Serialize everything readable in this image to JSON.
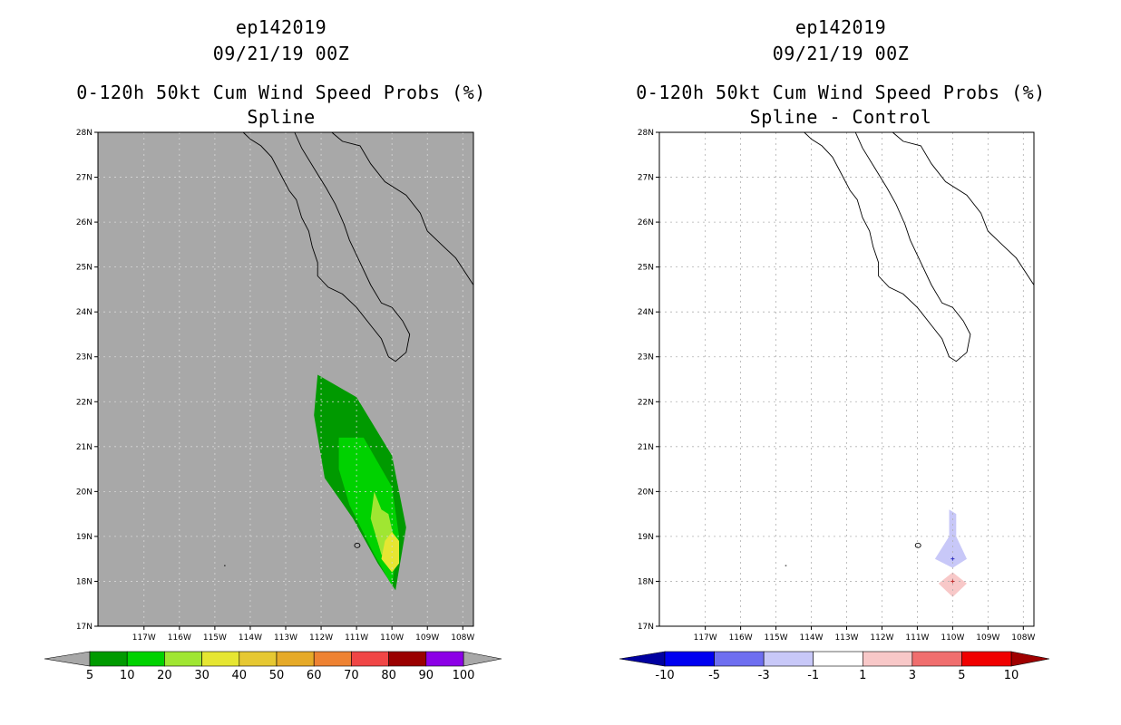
{
  "left_panel": {
    "storm_id": "ep142019",
    "datetime": "09/21/19 00Z",
    "product": "0-120h 50kt Cum Wind Speed Probs (%)",
    "subtitle": "Spline"
  },
  "right_panel": {
    "storm_id": "ep142019",
    "datetime": "09/21/19 00Z",
    "product": "0-120h 50kt Cum Wind Speed Probs (%)",
    "subtitle": "Spline - Control"
  },
  "chart_data": [
    {
      "type": "heatmap",
      "title": "0-120h 50kt Cum Wind Speed Probs (%)",
      "subtitle": "Spline",
      "x_ticks": [
        "117W",
        "116W",
        "115W",
        "114W",
        "113W",
        "112W",
        "111W",
        "110W",
        "109W",
        "108W"
      ],
      "y_ticks": [
        "28N",
        "27N",
        "26N",
        "25N",
        "24N",
        "23N",
        "22N",
        "21N",
        "20N",
        "19N",
        "18N",
        "17N"
      ],
      "xlim": [
        -118.3,
        -107.7
      ],
      "ylim": [
        17,
        28
      ],
      "background_color": "#a8a8a8",
      "grid": true,
      "colorbar": {
        "labels": [
          "5",
          "10",
          "20",
          "30",
          "40",
          "50",
          "60",
          "70",
          "80",
          "90",
          "100"
        ],
        "colors": [
          "#009a00",
          "#00d200",
          "#a0e632",
          "#e6e632",
          "#e6c832",
          "#e6aa28",
          "#ee8232",
          "#f04646",
          "#9a0000",
          "#8c00e6"
        ]
      },
      "contours": [
        {
          "level": "5-10",
          "color": "#009a00",
          "lon": [
            -112.1,
            -111.0,
            -110.0,
            -109.6,
            -109.9,
            -110.4,
            -111.1,
            -111.9,
            -112.2
          ],
          "lat": [
            22.6,
            22.1,
            20.8,
            19.2,
            17.8,
            18.4,
            19.4,
            20.3,
            21.7
          ]
        },
        {
          "level": "10-20",
          "color": "#00d200",
          "lon": [
            -111.5,
            -110.8,
            -110.0,
            -109.8,
            -110.0,
            -110.5,
            -111.2,
            -111.5
          ],
          "lat": [
            21.2,
            21.2,
            20.1,
            19.0,
            17.9,
            18.6,
            19.7,
            20.5
          ]
        },
        {
          "level": "20-30",
          "color": "#a0e632",
          "lon": [
            -110.5,
            -110.3,
            -110.1,
            -109.9,
            -110.0,
            -110.3,
            -110.6
          ],
          "lat": [
            20.0,
            19.6,
            19.5,
            18.8,
            18.3,
            18.6,
            19.4
          ]
        },
        {
          "level": "30-40",
          "color": "#e6e632",
          "lon": [
            -110.0,
            -109.8,
            -109.8,
            -110.0,
            -110.3,
            -110.2
          ],
          "lat": [
            19.1,
            18.9,
            18.4,
            18.2,
            18.5,
            18.9
          ]
        }
      ]
    },
    {
      "type": "heatmap",
      "title": "0-120h 50kt Cum Wind Speed Probs (%)",
      "subtitle": "Spline - Control",
      "x_ticks": [
        "117W",
        "116W",
        "115W",
        "114W",
        "113W",
        "112W",
        "111W",
        "110W",
        "109W",
        "108W"
      ],
      "y_ticks": [
        "28N",
        "27N",
        "26N",
        "25N",
        "24N",
        "23N",
        "22N",
        "21N",
        "20N",
        "19N",
        "18N",
        "17N"
      ],
      "xlim": [
        -118.3,
        -107.7
      ],
      "ylim": [
        17,
        28
      ],
      "background_color": "#ffffff",
      "grid": true,
      "colorbar": {
        "labels": [
          "-10",
          "-5",
          "-3",
          "-1",
          "1",
          "3",
          "5",
          "10"
        ],
        "colors": [
          "#0000a0",
          "#0000f0",
          "#6e6ef0",
          "#c8c8f8",
          "#ffffff",
          "#f8c8c8",
          "#f06e6e",
          "#f00000",
          "#a00000"
        ]
      },
      "contours": [
        {
          "level": "-3--1",
          "color": "#c8c8f8",
          "lon": [
            -110.1,
            -109.9,
            -109.9,
            -109.6,
            -110.0,
            -110.5,
            -110.1
          ],
          "lat": [
            19.6,
            19.5,
            19.0,
            18.5,
            18.3,
            18.5,
            19.0
          ]
        },
        {
          "level": "1-3",
          "color": "#f8c8c8",
          "lon": [
            -110.0,
            -109.6,
            -110.0,
            -110.4
          ],
          "lat": [
            18.2,
            17.95,
            17.65,
            17.95
          ]
        }
      ]
    }
  ]
}
